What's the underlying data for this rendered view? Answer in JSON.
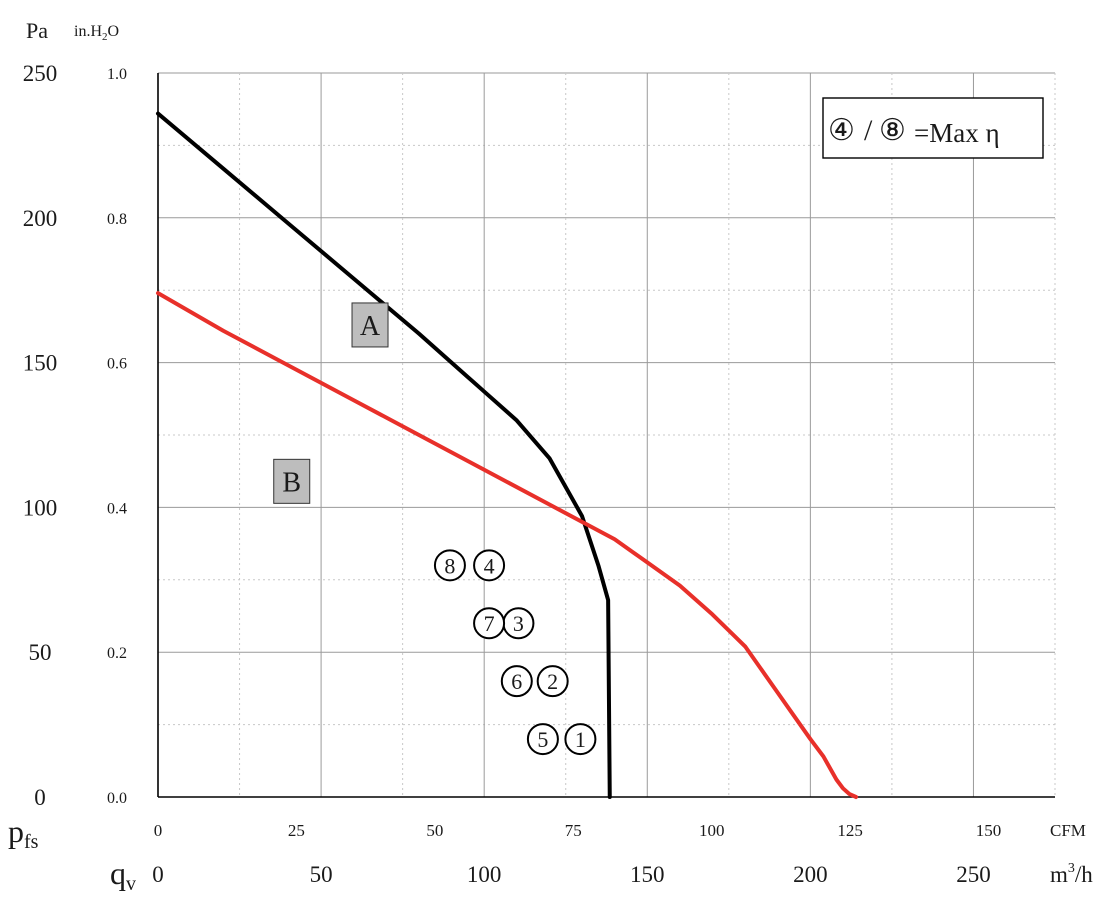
{
  "chart_data": {
    "type": "line",
    "y_axes": {
      "primary": {
        "unit": "Pa",
        "ylim": [
          0,
          250
        ],
        "ticks": [
          "0",
          "50",
          "100",
          "150",
          "200",
          "250"
        ]
      },
      "secondary": {
        "unit_base": "in.H",
        "unit_sub": "2",
        "unit_end": "O",
        "ylim": [
          0,
          1.0
        ],
        "ticks": [
          "0.0",
          "0.2",
          "0.4",
          "0.6",
          "0.8",
          "1.0"
        ]
      },
      "symbol": "p",
      "symbol_sub": "fs"
    },
    "x_axes": {
      "cfm": {
        "unit": "CFM",
        "xlim": [
          0,
          162
        ],
        "ticks": [
          "0",
          "25",
          "50",
          "75",
          "100",
          "125",
          "150"
        ]
      },
      "m3h": {
        "unit_base": "m",
        "unit_sup": "3",
        "unit_end": "/h",
        "xlim": [
          0,
          275
        ],
        "ticks": [
          "0",
          "50",
          "100",
          "150",
          "200",
          "250"
        ]
      },
      "symbol": "q",
      "symbol_sub": "v"
    },
    "grid": true,
    "series": [
      {
        "name": "A",
        "color": "#000000",
        "x": [
          0,
          20,
          40,
          60,
          80,
          95,
          100,
          110,
          120,
          130,
          135,
          138,
          138.5
        ],
        "y": [
          236,
          217,
          198,
          179,
          160,
          145,
          140,
          130,
          117,
          97,
          80,
          68,
          0
        ]
      },
      {
        "name": "B",
        "color": "#e8302a",
        "x": [
          0,
          20,
          40,
          60,
          80,
          100,
          120,
          140,
          150,
          160,
          170,
          180,
          190,
          195,
          200,
          204,
          208,
          210,
          212,
          214
        ],
        "y": [
          174,
          161,
          149,
          137,
          125,
          113,
          101,
          89,
          81,
          73,
          63,
          52,
          36,
          28,
          20,
          14,
          6,
          3,
          1,
          0
        ]
      }
    ],
    "operating_points": [
      {
        "label": "1",
        "x": 129.5,
        "y": 20
      },
      {
        "label": "2",
        "x": 121,
        "y": 40
      },
      {
        "label": "3",
        "x": 110.5,
        "y": 60
      },
      {
        "label": "4",
        "x": 101.5,
        "y": 80
      },
      {
        "label": "5",
        "x": 118,
        "y": 20
      },
      {
        "label": "6",
        "x": 110,
        "y": 40
      },
      {
        "label": "7",
        "x": 101.5,
        "y": 60
      },
      {
        "label": "8",
        "x": 89.5,
        "y": 80
      }
    ],
    "curve_labels": [
      {
        "text": "A",
        "x": 65,
        "y": 163
      },
      {
        "text": "B",
        "x": 41,
        "y": 109
      }
    ],
    "legend": {
      "first_symbol": "④",
      "separator": "/",
      "second_symbol": "⑧",
      "text": "=Max η",
      "placement": "top-right"
    }
  }
}
